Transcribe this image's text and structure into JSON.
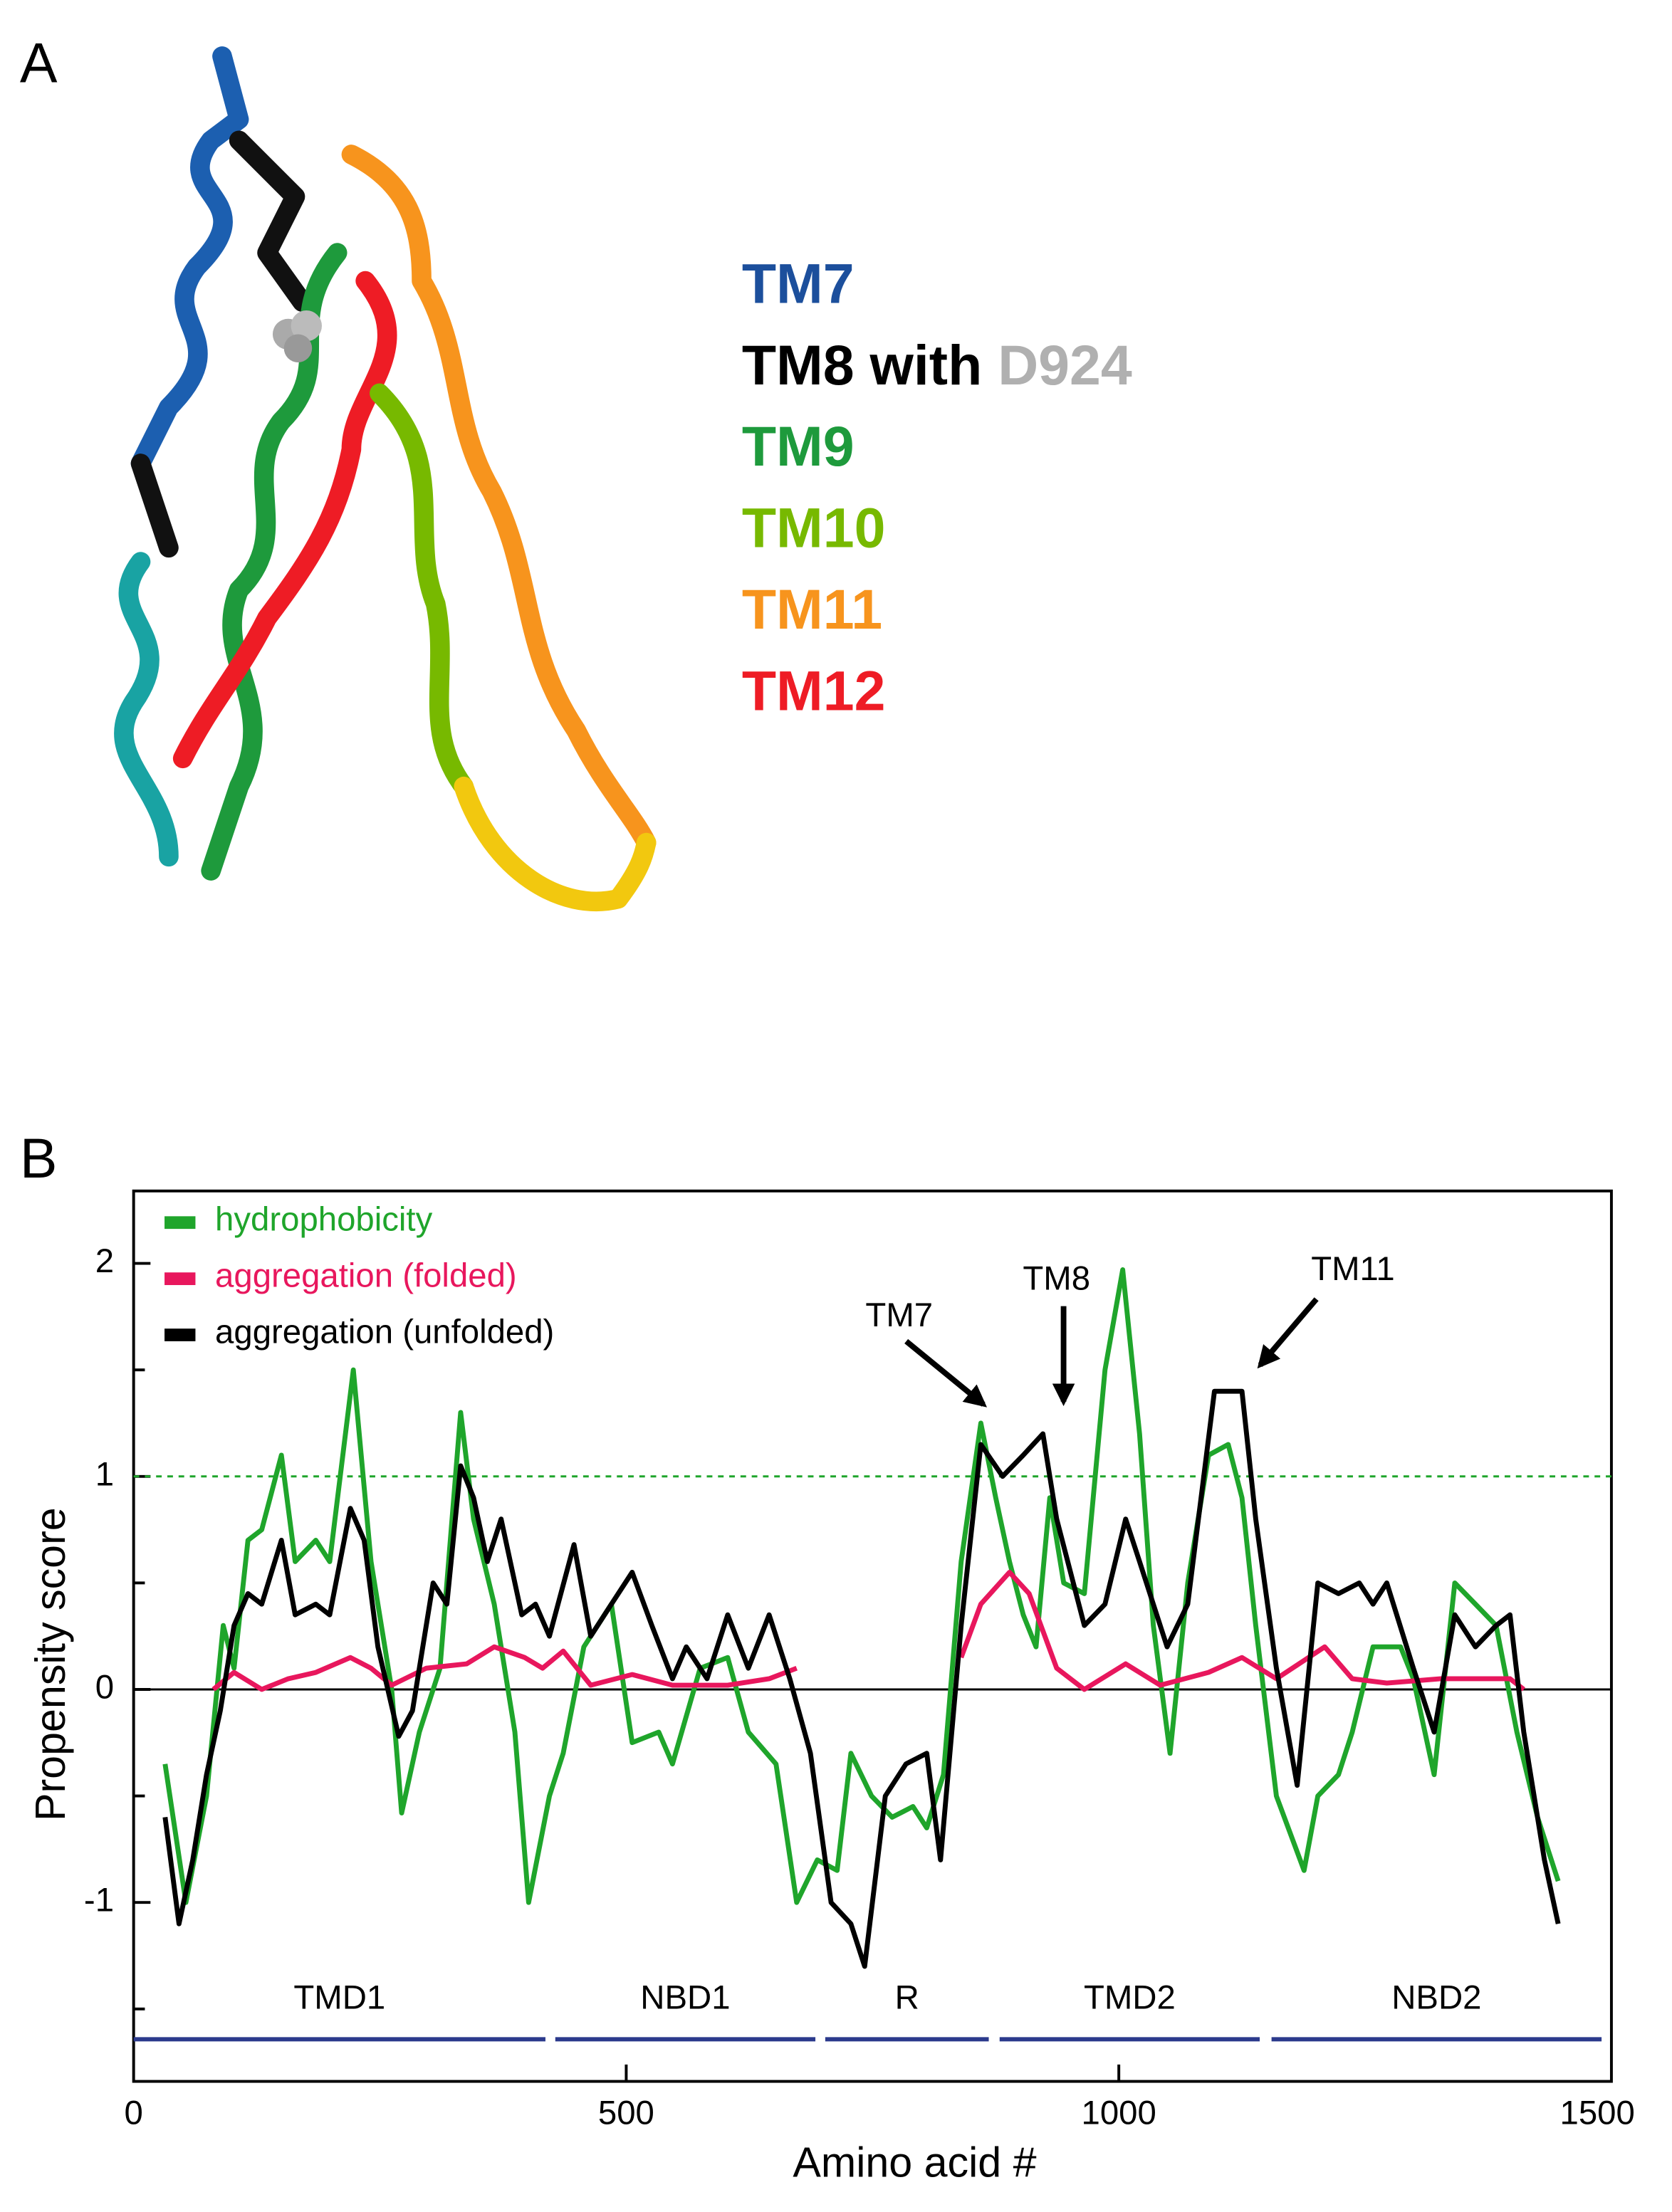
{
  "panel_a": {
    "label": "A",
    "legend": [
      {
        "parts": [
          {
            "text": "TM7",
            "color": "#1c4f9c"
          }
        ]
      },
      {
        "parts": [
          {
            "text": "TM8 with ",
            "color": "#000000"
          },
          {
            "text": "D924",
            "color": "#b0b0b0"
          }
        ]
      },
      {
        "parts": [
          {
            "text": "TM9",
            "color": "#1e9a3c"
          }
        ]
      },
      {
        "parts": [
          {
            "text": "TM10",
            "color": "#77b900"
          }
        ]
      },
      {
        "parts": [
          {
            "text": "TM11",
            "color": "#f7941d"
          }
        ]
      },
      {
        "parts": [
          {
            "text": "TM12",
            "color": "#ee1c25"
          }
        ]
      }
    ]
  },
  "chart_data": {
    "type": "line",
    "panel_label": "B",
    "xlabel": "Amino acid #",
    "ylabel": "Propensity score",
    "xlim": [
      0,
      1500
    ],
    "ylim": [
      -1.84,
      2.34
    ],
    "xticks": [
      0,
      500,
      1000,
      1500
    ],
    "yticks": [
      -1,
      0,
      1,
      2
    ],
    "yminor": [
      -1.5,
      -0.5,
      0.5,
      1.5
    ],
    "zero_line": 0,
    "threshold": {
      "value": 1,
      "color": "#1fa52b"
    },
    "legend": "upper left",
    "series": [
      {
        "name": "hydrophobicity",
        "color": "#1fa52b",
        "x": [
          32,
          53,
          74,
          91,
          102,
          116,
          130,
          150,
          164,
          185,
          199,
          223,
          241,
          262,
          272,
          290,
          311,
          332,
          345,
          366,
          387,
          401,
          422,
          436,
          457,
          485,
          506,
          533,
          547,
          575,
          603,
          624,
          652,
          673,
          694,
          714,
          728,
          749,
          770,
          791,
          805,
          822,
          840,
          860,
          875,
          889,
          903,
          916,
          930,
          944,
          965,
          986,
          1004,
          1021,
          1035,
          1052,
          1070,
          1091,
          1111,
          1125,
          1139,
          1160,
          1188,
          1202,
          1223,
          1237,
          1258,
          1286,
          1299,
          1320,
          1341,
          1362,
          1383,
          1404,
          1425,
          1446
        ],
        "values": [
          -0.35,
          -1.0,
          -0.5,
          0.3,
          0.1,
          0.7,
          0.75,
          1.1,
          0.6,
          0.7,
          0.6,
          1.5,
          0.6,
          0.0,
          -0.58,
          -0.2,
          0.1,
          1.3,
          0.8,
          0.4,
          -0.2,
          -1.0,
          -0.5,
          -0.3,
          0.2,
          0.4,
          -0.25,
          -0.2,
          -0.35,
          0.1,
          0.15,
          -0.2,
          -0.35,
          -1.0,
          -0.8,
          -0.85,
          -0.3,
          -0.5,
          -0.6,
          -0.55,
          -0.65,
          -0.4,
          0.6,
          1.25,
          0.9,
          0.6,
          0.35,
          0.2,
          0.9,
          0.5,
          0.45,
          1.5,
          1.97,
          1.2,
          0.3,
          -0.3,
          0.5,
          1.1,
          1.15,
          0.9,
          0.3,
          -0.5,
          -0.85,
          -0.5,
          -0.4,
          -0.2,
          0.2,
          0.2,
          0.05,
          -0.4,
          0.5,
          0.4,
          0.3,
          -0.2,
          -0.6,
          -0.9
        ]
      },
      {
        "name": "aggregation (folded)",
        "color": "#e8175d",
        "x": [
          81,
          102,
          130,
          157,
          185,
          220,
          241,
          262,
          297,
          338,
          366,
          397,
          415,
          436,
          464,
          506,
          547,
          603,
          645,
          673,
          750,
          840,
          860,
          889,
          909,
          937,
          965,
          1007,
          1042,
          1091,
          1125,
          1160,
          1209,
          1237,
          1272,
          1327,
          1397,
          1411
        ],
        "values": [
          0,
          0.08,
          0,
          0.05,
          0.08,
          0.15,
          0.1,
          0.02,
          0.1,
          0.12,
          0.2,
          0.15,
          0.1,
          0.18,
          0.02,
          0.07,
          0.02,
          0.02,
          0.05,
          0.1,
          null,
          0.15,
          0.4,
          0.55,
          0.45,
          0.1,
          0.0,
          0.12,
          0.02,
          0.08,
          0.15,
          0.05,
          0.2,
          0.05,
          0.03,
          0.05,
          0.05,
          0.0
        ]
      },
      {
        "name": "aggregation (unfolded)",
        "color": "#000000",
        "x": [
          32,
          46,
          60,
          74,
          88,
          102,
          116,
          130,
          150,
          164,
          185,
          199,
          220,
          234,
          248,
          269,
          283,
          304,
          318,
          332,
          345,
          359,
          373,
          394,
          408,
          422,
          447,
          464,
          485,
          506,
          526,
          547,
          561,
          582,
          603,
          624,
          645,
          666,
          687,
          708,
          728,
          742,
          763,
          784,
          805,
          819,
          840,
          860,
          882,
          903,
          923,
          937,
          965,
          986,
          1007,
          1021,
          1049,
          1070,
          1097,
          1125,
          1139,
          1160,
          1181,
          1202,
          1223,
          1244,
          1258,
          1272,
          1299,
          1320,
          1341,
          1362,
          1383,
          1397,
          1411,
          1432,
          1446
        ],
        "values": [
          -0.6,
          -1.1,
          -0.8,
          -0.4,
          -0.1,
          0.3,
          0.45,
          0.4,
          0.7,
          0.35,
          0.4,
          0.35,
          0.85,
          0.7,
          0.2,
          -0.22,
          -0.1,
          0.5,
          0.4,
          1.05,
          0.9,
          0.6,
          0.8,
          0.35,
          0.4,
          0.25,
          0.68,
          0.25,
          0.4,
          0.55,
          0.3,
          0.05,
          0.2,
          0.05,
          0.35,
          0.1,
          0.35,
          0.05,
          -0.3,
          -1.0,
          -1.1,
          -1.3,
          -0.5,
          -0.35,
          -0.3,
          -0.8,
          0.3,
          1.15,
          1.0,
          1.1,
          1.2,
          0.8,
          0.3,
          0.4,
          0.8,
          0.6,
          0.2,
          0.4,
          1.4,
          1.4,
          0.8,
          0.1,
          -0.45,
          0.5,
          0.45,
          0.5,
          0.4,
          0.5,
          0.1,
          -0.2,
          0.35,
          0.2,
          0.3,
          0.35,
          -0.2,
          -0.8,
          -1.1
        ]
      }
    ],
    "annotations": [
      {
        "text": "TM7"
      },
      {
        "text": "TM8"
      },
      {
        "text": "TM11"
      }
    ],
    "domain_color": "#2b3a8c",
    "domains": [
      {
        "name": "TMD1",
        "start": 0,
        "end": 418
      },
      {
        "name": "NBD1",
        "start": 428,
        "end": 692
      },
      {
        "name": "R",
        "start": 702,
        "end": 868
      },
      {
        "name": "TMD2",
        "start": 879,
        "end": 1143
      },
      {
        "name": "NBD2",
        "start": 1155,
        "end": 1490
      }
    ]
  }
}
